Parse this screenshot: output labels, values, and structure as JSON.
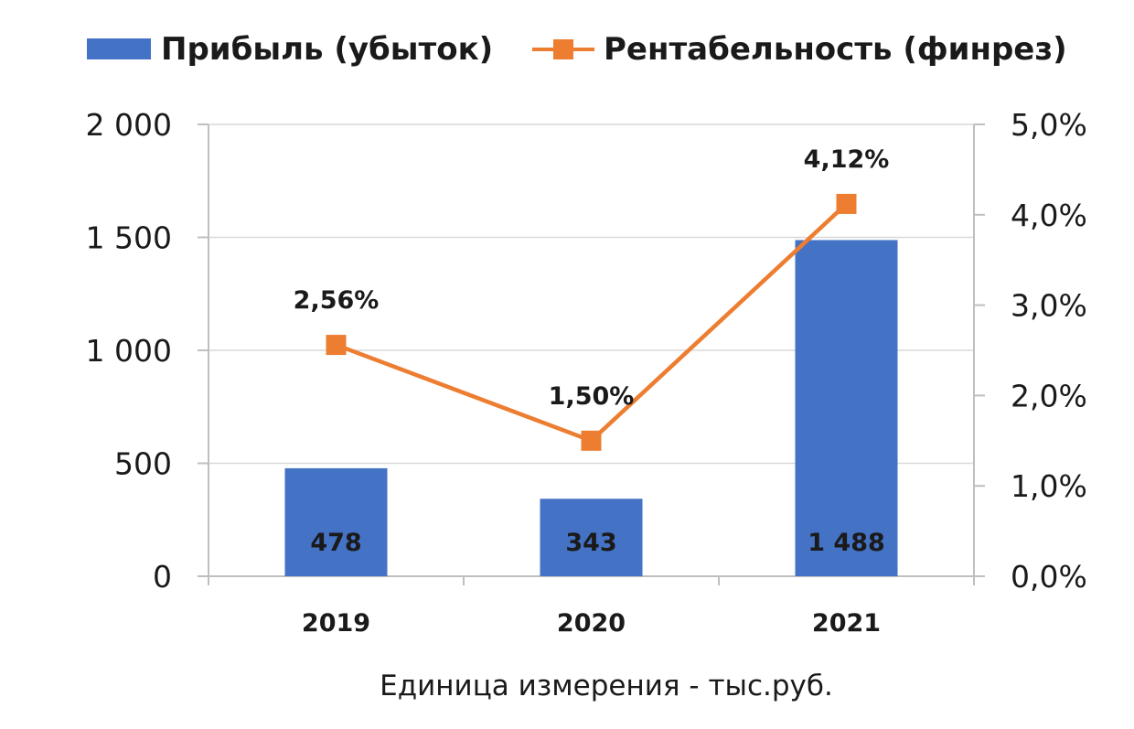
{
  "chart_data": {
    "type": "bar",
    "categories": [
      "2019",
      "2020",
      "2021"
    ],
    "series": [
      {
        "name": "Прибыль (убыток)",
        "type": "bar",
        "axis": "left",
        "color": "#4472C4",
        "values": [
          478,
          343,
          1488
        ],
        "labels": [
          "478",
          "343",
          "1 488"
        ]
      },
      {
        "name": "Рентабельность (финрез)",
        "type": "line",
        "axis": "right",
        "color": "#ED7D31",
        "marker": "square",
        "values": [
          2.56,
          1.5,
          4.12
        ],
        "labels": [
          "2,56%",
          "1,50%",
          "4,12%"
        ]
      }
    ],
    "y_left": {
      "range": [
        0,
        2000
      ],
      "ticks": [
        0,
        500,
        1000,
        1500,
        2000
      ],
      "tick_labels": [
        "0",
        "500",
        "1 000",
        "1 500",
        "2 000"
      ]
    },
    "y_right": {
      "range": [
        0,
        5
      ],
      "ticks": [
        0,
        1,
        2,
        3,
        4,
        5
      ],
      "tick_labels": [
        "0,0%",
        "1,0%",
        "2,0%",
        "3,0%",
        "4,0%",
        "5,0%"
      ]
    },
    "legend_position": "top",
    "grid": "horizontal",
    "note": "Единица измерения - тыс.руб."
  }
}
